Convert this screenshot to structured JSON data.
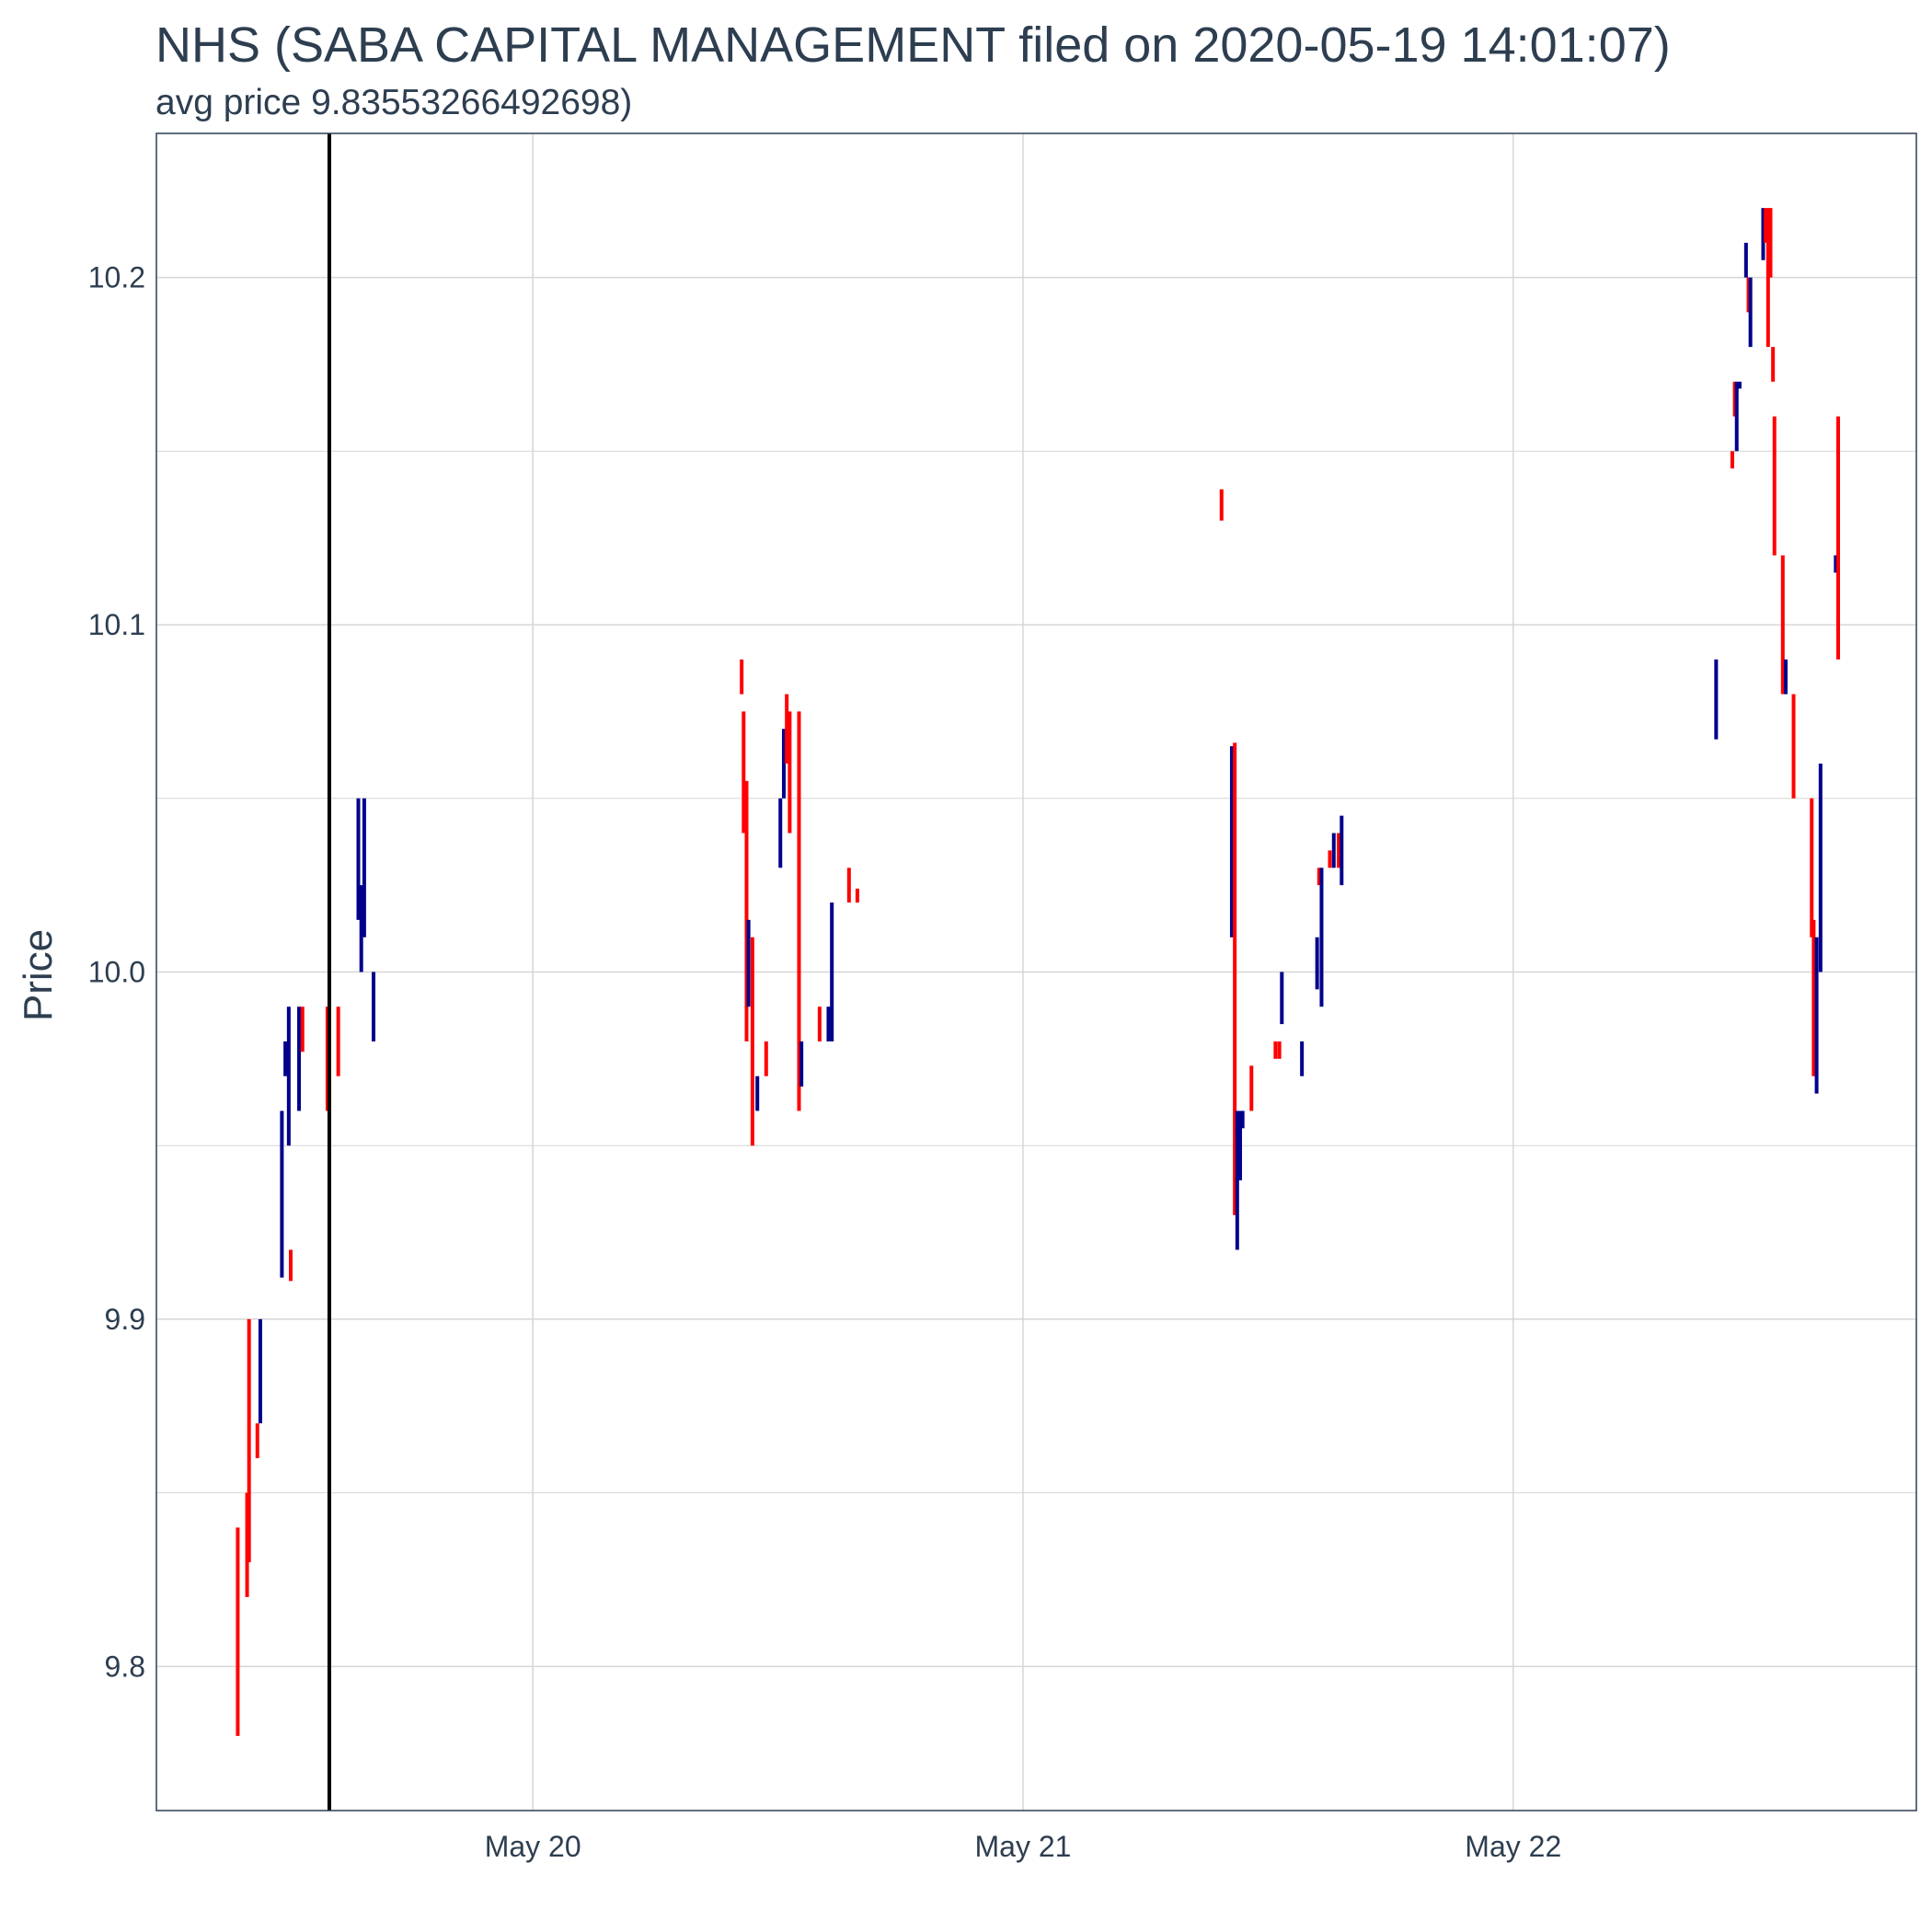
{
  "chart_data": {
    "type": "candlestick",
    "title": "NHS (SABA CAPITAL MANAGEMENT filed on 2020-05-19 14:01:07)",
    "subtitle": "avg price 9.83553266492698)",
    "ylabel": "Price",
    "xlabel": "",
    "x_ticks": [
      {
        "label": "May 20",
        "day": 20
      },
      {
        "label": "May 21",
        "day": 21
      },
      {
        "label": "May 22",
        "day": 22
      }
    ],
    "y_ticks": [
      {
        "label": "9.8",
        "value": 9.8
      },
      {
        "label": "9.9",
        "value": 9.9
      },
      {
        "label": "10.0",
        "value": 10.0
      },
      {
        "label": "10.1",
        "value": 10.1
      },
      {
        "label": "10.2",
        "value": 10.2
      }
    ],
    "xlim": [
      19.232,
      22.8225
    ],
    "ylim": [
      9.7585,
      10.2415
    ],
    "grid": true,
    "vline_day": 19.5848,
    "colors": {
      "up": "#00008b",
      "down": "#ff0000",
      "vline": "#000000",
      "grid": "#d6d6d6",
      "border": "#2d3e50"
    },
    "candles": [
      {
        "day": 19.398,
        "low": 9.78,
        "high": 9.84,
        "dir": "down"
      },
      {
        "day": 19.417,
        "low": 9.82,
        "high": 9.85,
        "dir": "down"
      },
      {
        "day": 19.421,
        "low": 9.83,
        "high": 9.9,
        "dir": "down"
      },
      {
        "day": 19.438,
        "low": 9.86,
        "high": 9.87,
        "dir": "down"
      },
      {
        "day": 19.444,
        "low": 9.87,
        "high": 9.9,
        "dir": "up"
      },
      {
        "day": 19.488,
        "low": 9.912,
        "high": 9.96,
        "dir": "up"
      },
      {
        "day": 19.495,
        "low": 9.97,
        "high": 9.98,
        "dir": "up"
      },
      {
        "day": 19.502,
        "low": 9.95,
        "high": 9.99,
        "dir": "up"
      },
      {
        "day": 19.506,
        "low": 9.911,
        "high": 9.92,
        "dir": "down"
      },
      {
        "day": 19.523,
        "low": 9.96,
        "high": 9.99,
        "dir": "up"
      },
      {
        "day": 19.53,
        "low": 9.977,
        "high": 9.99,
        "dir": "down"
      },
      {
        "day": 19.581,
        "low": 9.96,
        "high": 9.99,
        "dir": "down"
      },
      {
        "day": 19.603,
        "low": 9.97,
        "high": 9.99,
        "dir": "down"
      },
      {
        "day": 19.644,
        "low": 10.015,
        "high": 10.05,
        "dir": "up"
      },
      {
        "day": 19.65,
        "low": 10.0,
        "high": 10.025,
        "dir": "up"
      },
      {
        "day": 19.656,
        "low": 10.01,
        "high": 10.05,
        "dir": "up"
      },
      {
        "day": 19.675,
        "low": 9.98,
        "high": 10.0,
        "dir": "up"
      },
      {
        "day": 20.426,
        "low": 10.08,
        "high": 10.09,
        "dir": "down"
      },
      {
        "day": 20.43,
        "low": 10.04,
        "high": 10.075,
        "dir": "down"
      },
      {
        "day": 20.436,
        "low": 9.98,
        "high": 10.055,
        "dir": "down"
      },
      {
        "day": 20.44,
        "low": 9.99,
        "high": 10.015,
        "dir": "up"
      },
      {
        "day": 20.448,
        "low": 9.95,
        "high": 10.01,
        "dir": "down"
      },
      {
        "day": 20.458,
        "low": 9.96,
        "high": 9.97,
        "dir": "up"
      },
      {
        "day": 20.476,
        "low": 9.97,
        "high": 9.98,
        "dir": "down"
      },
      {
        "day": 20.505,
        "low": 10.03,
        "high": 10.05,
        "dir": "up"
      },
      {
        "day": 20.512,
        "low": 10.05,
        "high": 10.07,
        "dir": "up"
      },
      {
        "day": 20.518,
        "low": 10.06,
        "high": 10.08,
        "dir": "down"
      },
      {
        "day": 20.524,
        "low": 10.04,
        "high": 10.075,
        "dir": "down"
      },
      {
        "day": 20.543,
        "low": 9.96,
        "high": 10.075,
        "dir": "down"
      },
      {
        "day": 20.548,
        "low": 9.967,
        "high": 9.98,
        "dir": "up"
      },
      {
        "day": 20.585,
        "low": 9.98,
        "high": 9.99,
        "dir": "down"
      },
      {
        "day": 20.603,
        "low": 9.98,
        "high": 9.99,
        "dir": "up"
      },
      {
        "day": 20.61,
        "low": 9.98,
        "high": 10.02,
        "dir": "up"
      },
      {
        "day": 20.645,
        "low": 10.02,
        "high": 10.03,
        "dir": "down"
      },
      {
        "day": 20.662,
        "low": 10.02,
        "high": 10.024,
        "dir": "down"
      },
      {
        "day": 21.405,
        "low": 10.13,
        "high": 10.139,
        "dir": "down"
      },
      {
        "day": 21.426,
        "low": 10.01,
        "high": 10.065,
        "dir": "up"
      },
      {
        "day": 21.432,
        "low": 9.93,
        "high": 10.066,
        "dir": "down"
      },
      {
        "day": 21.437,
        "low": 9.92,
        "high": 9.96,
        "dir": "up"
      },
      {
        "day": 21.443,
        "low": 9.94,
        "high": 9.96,
        "dir": "up"
      },
      {
        "day": 21.448,
        "low": 9.955,
        "high": 9.96,
        "dir": "up"
      },
      {
        "day": 21.466,
        "low": 9.96,
        "high": 9.973,
        "dir": "down"
      },
      {
        "day": 21.515,
        "low": 9.975,
        "high": 9.98,
        "dir": "down"
      },
      {
        "day": 21.523,
        "low": 9.975,
        "high": 9.98,
        "dir": "down"
      },
      {
        "day": 21.528,
        "low": 9.985,
        "high": 10.0,
        "dir": "up"
      },
      {
        "day": 21.569,
        "low": 9.97,
        "high": 9.98,
        "dir": "up"
      },
      {
        "day": 21.6,
        "low": 9.995,
        "high": 10.01,
        "dir": "up"
      },
      {
        "day": 21.604,
        "low": 10.025,
        "high": 10.03,
        "dir": "down"
      },
      {
        "day": 21.609,
        "low": 9.99,
        "high": 10.03,
        "dir": "up"
      },
      {
        "day": 21.626,
        "low": 10.03,
        "high": 10.035,
        "dir": "down"
      },
      {
        "day": 21.634,
        "low": 10.03,
        "high": 10.04,
        "dir": "up"
      },
      {
        "day": 21.644,
        "low": 10.03,
        "high": 10.04,
        "dir": "down"
      },
      {
        "day": 21.65,
        "low": 10.025,
        "high": 10.045,
        "dir": "up"
      },
      {
        "day": 22.414,
        "low": 10.067,
        "high": 10.09,
        "dir": "up"
      },
      {
        "day": 22.447,
        "low": 10.145,
        "high": 10.15,
        "dir": "down"
      },
      {
        "day": 22.452,
        "low": 10.16,
        "high": 10.17,
        "dir": "down"
      },
      {
        "day": 22.456,
        "low": 10.15,
        "high": 10.17,
        "dir": "up"
      },
      {
        "day": 22.462,
        "low": 10.168,
        "high": 10.17,
        "dir": "up"
      },
      {
        "day": 22.475,
        "low": 10.2,
        "high": 10.21,
        "dir": "up"
      },
      {
        "day": 22.48,
        "low": 10.19,
        "high": 10.2,
        "dir": "down"
      },
      {
        "day": 22.484,
        "low": 10.18,
        "high": 10.2,
        "dir": "up"
      },
      {
        "day": 22.51,
        "low": 10.205,
        "high": 10.22,
        "dir": "up"
      },
      {
        "day": 22.515,
        "low": 10.21,
        "high": 10.22,
        "dir": "down"
      },
      {
        "day": 22.52,
        "low": 10.18,
        "high": 10.22,
        "dir": "down"
      },
      {
        "day": 22.525,
        "low": 10.2,
        "high": 10.22,
        "dir": "down"
      },
      {
        "day": 22.53,
        "low": 10.17,
        "high": 10.18,
        "dir": "down"
      },
      {
        "day": 22.533,
        "low": 10.12,
        "high": 10.16,
        "dir": "down"
      },
      {
        "day": 22.55,
        "low": 10.08,
        "high": 10.12,
        "dir": "down"
      },
      {
        "day": 22.556,
        "low": 10.08,
        "high": 10.09,
        "dir": "up"
      },
      {
        "day": 22.572,
        "low": 10.05,
        "high": 10.08,
        "dir": "down"
      },
      {
        "day": 22.609,
        "low": 10.01,
        "high": 10.05,
        "dir": "down"
      },
      {
        "day": 22.613,
        "low": 9.97,
        "high": 10.015,
        "dir": "down"
      },
      {
        "day": 22.619,
        "low": 9.965,
        "high": 10.01,
        "dir": "up"
      },
      {
        "day": 22.627,
        "low": 10.0,
        "high": 10.06,
        "dir": "up"
      },
      {
        "day": 22.658,
        "low": 10.115,
        "high": 10.12,
        "dir": "up"
      },
      {
        "day": 22.663,
        "low": 10.09,
        "high": 10.16,
        "dir": "down"
      }
    ]
  }
}
